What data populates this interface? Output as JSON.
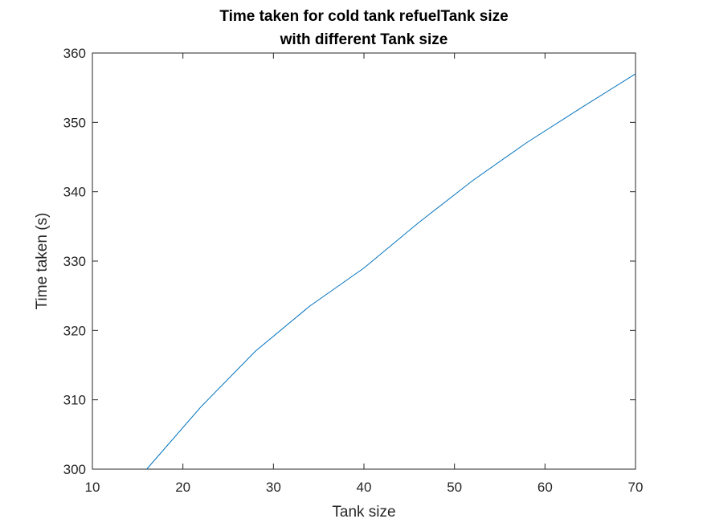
{
  "chart_data": {
    "type": "line",
    "title": [
      "Time taken for cold tank refuelTank size",
      "with different Tank size"
    ],
    "xlabel": "Tank size",
    "ylabel": "Time taken (s)",
    "xlim": [
      10,
      70
    ],
    "ylim": [
      300,
      360
    ],
    "xticks": [
      "10",
      "20",
      "30",
      "40",
      "50",
      "60",
      "70"
    ],
    "yticks": [
      "300",
      "310",
      "320",
      "330",
      "340",
      "350",
      "360"
    ],
    "grid": false,
    "series": [
      {
        "color": "#0072BD",
        "x": [
          16,
          22,
          28,
          34,
          40,
          46,
          52,
          58,
          64,
          70
        ],
        "y": [
          300,
          309,
          317,
          323.5,
          329,
          335.5,
          341.6,
          347.1,
          352.1,
          357
        ]
      }
    ]
  }
}
